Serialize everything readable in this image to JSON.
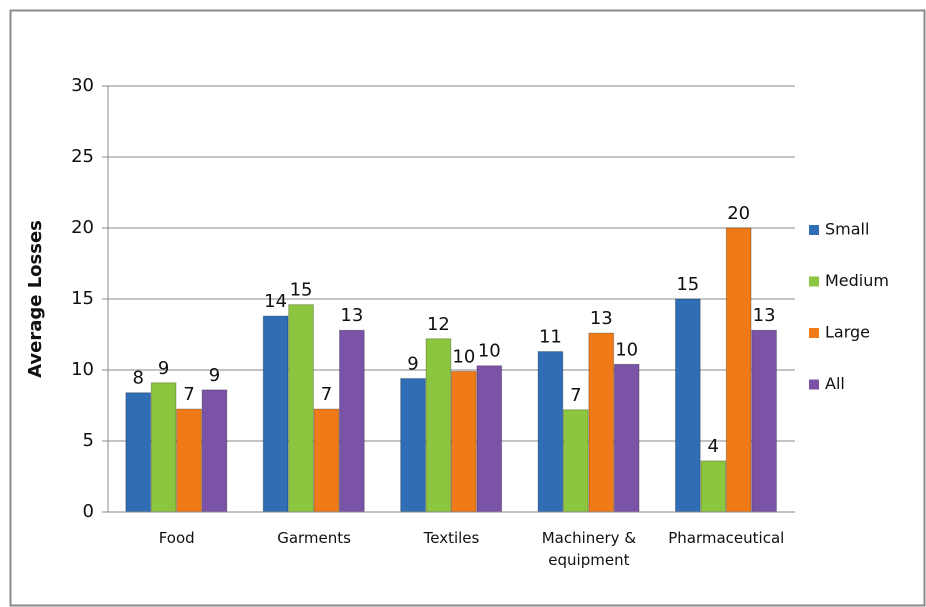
{
  "chart_data": {
    "type": "bar",
    "y_label": "Average Losses",
    "categories": [
      "Food",
      "Garments",
      "Textiles",
      "Machinery & equipment",
      "Pharmaceutical"
    ],
    "series": [
      {
        "name": "Small",
        "color": "#2f6db5",
        "values": [
          8.4,
          13.8,
          9.4,
          11.3,
          15.0
        ],
        "value_labels": [
          "8",
          "14",
          "9",
          "11",
          "15"
        ]
      },
      {
        "name": "Medium",
        "color": "#8cc63f",
        "values": [
          9.1,
          14.6,
          12.2,
          7.2,
          3.6
        ],
        "value_labels": [
          "9",
          "15",
          "12",
          "7",
          "4"
        ]
      },
      {
        "name": "Large",
        "color": "#f07a17",
        "values": [
          7.25,
          7.25,
          9.9,
          12.6,
          20.0
        ],
        "value_labels": [
          "7",
          "7",
          "10",
          "13",
          "20"
        ]
      },
      {
        "name": "All",
        "color": "#7b53a6",
        "values": [
          8.6,
          12.8,
          10.3,
          10.4,
          12.8
        ],
        "value_labels": [
          "9",
          "13",
          "10",
          "10",
          "13"
        ]
      }
    ],
    "ylim": [
      0,
      30
    ],
    "yticks": [
      0,
      5,
      10,
      15,
      20,
      25,
      30
    ],
    "grid": true,
    "legend_position": "right"
  }
}
